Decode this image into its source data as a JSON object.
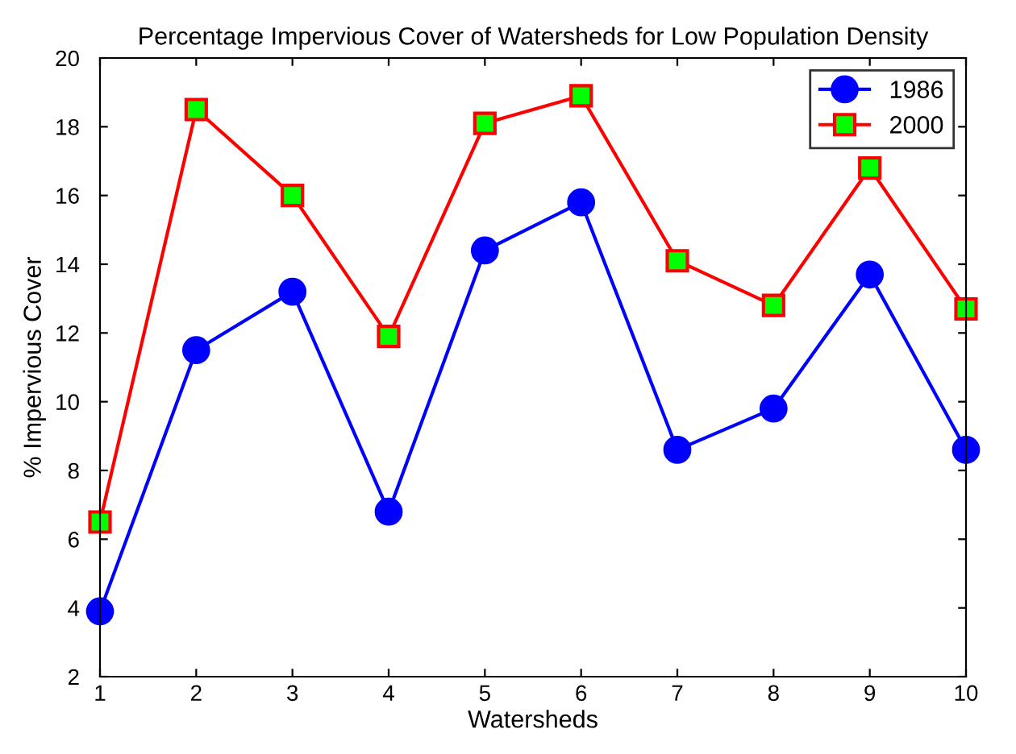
{
  "chart_data": {
    "type": "line",
    "title": "Percentage Impervious Cover of Watersheds for Low Population Density",
    "xlabel": "Watersheds",
    "ylabel": "% Impervious Cover",
    "x": [
      1,
      2,
      3,
      4,
      5,
      6,
      7,
      8,
      9,
      10
    ],
    "series": [
      {
        "name": "1986",
        "color": "#0000ff",
        "marker": "circle",
        "values": [
          3.9,
          11.5,
          13.2,
          6.8,
          14.4,
          15.8,
          8.6,
          9.8,
          13.7,
          8.6
        ]
      },
      {
        "name": "2000",
        "color": "#ff0000",
        "marker": "square",
        "values": [
          6.5,
          18.5,
          16.0,
          11.9,
          18.1,
          18.9,
          14.1,
          12.8,
          16.8,
          12.7
        ]
      }
    ],
    "xlim": [
      1,
      10
    ],
    "xticks": [
      1,
      2,
      3,
      4,
      5,
      6,
      7,
      8,
      9,
      10
    ],
    "ylim": [
      2,
      20
    ],
    "yticks": [
      2,
      4,
      6,
      8,
      10,
      12,
      14,
      16,
      18,
      20
    ],
    "grid": false,
    "legend": "top right",
    "line_style": "solid"
  }
}
